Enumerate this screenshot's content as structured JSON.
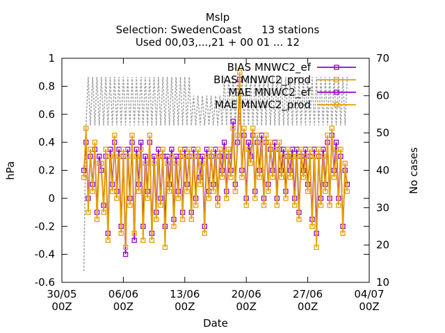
{
  "chart_data": {
    "type": "line",
    "title": "Mslp",
    "subtitle": "Selection: SwedenCoast      13 stations",
    "subtitle2": "Used 00,03,...,21 + 00 01 ... 12",
    "xlabel": "Date",
    "ylabel": "hPa",
    "y2label": "No cases",
    "ylim": [
      -0.6,
      1.0
    ],
    "y2lim": [
      10,
      70
    ],
    "xlim": [
      "30/05 00Z",
      "04/07 00Z"
    ],
    "x_ticks": [
      "30/05",
      "06/06",
      "13/06",
      "20/06",
      "27/06",
      "04/07"
    ],
    "x_ticks_sub": [
      "00Z",
      "00Z",
      "00Z",
      "00Z",
      "00Z",
      "00Z"
    ],
    "y_ticks": [
      "1",
      "0.8",
      "0.6",
      "0.4",
      "0.2",
      "0",
      "-0.2",
      "-0.4",
      "-0.6"
    ],
    "y2_ticks": [
      "70",
      "60",
      "50",
      "40",
      "30",
      "20",
      "10"
    ],
    "legend_position": "top-right",
    "grid": false,
    "colors": {
      "series1": "#9400d3",
      "series2": "#e69f00",
      "series3": "#9400d3",
      "series4": "#e69f00",
      "cases": "#a0a0a0"
    },
    "x_range_days": [
      1.5,
      31.5
    ],
    "series": [
      {
        "name": "BIAS MNWC2_ef",
        "axis": "y",
        "marker": "square",
        "x": [
          1.5,
          1.75,
          2.0,
          2.25,
          2.5,
          2.75,
          3.0,
          3.25,
          3.5,
          3.75,
          4.0,
          4.25,
          4.5,
          4.75,
          5.0,
          5.25,
          5.5,
          5.75,
          6.0,
          6.25,
          6.5,
          6.75,
          7.0,
          7.25,
          7.5,
          7.75,
          8.0,
          8.25,
          8.5,
          8.75,
          9.0,
          9.25,
          9.5,
          9.75,
          10.0,
          10.25,
          10.5,
          10.75,
          11.0,
          11.25,
          11.5,
          11.75,
          12.0,
          12.25,
          12.5,
          12.75,
          13.0,
          13.25,
          13.5,
          13.75,
          14.0,
          14.25,
          14.5,
          14.75,
          15.0,
          15.25,
          15.5,
          15.75,
          16.0,
          16.25,
          16.5,
          16.75,
          17.0,
          17.25,
          17.5,
          17.75,
          18.0,
          18.25,
          18.5,
          18.75,
          19.0,
          19.25,
          19.5,
          19.75,
          20.0,
          20.25,
          20.5,
          20.75,
          21.0,
          21.25,
          21.5,
          21.75,
          22.0,
          22.25,
          22.5,
          22.75,
          23.0,
          23.25,
          23.5,
          23.75,
          24.0,
          24.25,
          24.5,
          24.75,
          25.0,
          25.25,
          25.5,
          25.75,
          26.0,
          26.25,
          26.5,
          26.75,
          27.0,
          27.25,
          27.5,
          27.75,
          28.0,
          28.25,
          28.5,
          28.75,
          29.0,
          29.25,
          29.5,
          29.75,
          30.0,
          30.25,
          30.5,
          30.75,
          31.0,
          31.25,
          31.5
        ],
        "values": [
          0.2,
          0.4,
          0.0,
          0.3,
          0.1,
          0.35,
          -0.1,
          0.3,
          0.2,
          -0.05,
          0.3,
          -0.25,
          0.35,
          0.1,
          0.4,
          0.05,
          0.35,
          -0.2,
          0.3,
          -0.4,
          0.35,
          0.0,
          0.4,
          -0.3,
          0.35,
          0.1,
          0.4,
          -0.2,
          0.3,
          0.05,
          0.4,
          -0.25,
          0.3,
          -0.1,
          0.35,
          0.0,
          0.3,
          -0.2,
          0.3,
          0.1,
          0.35,
          -0.15,
          0.3,
          0.05,
          0.3,
          -0.1,
          0.35,
          0.1,
          0.3,
          -0.1,
          0.35,
          0.0,
          0.3,
          0.15,
          0.3,
          -0.2,
          0.35,
          0.05,
          0.3,
          0.1,
          0.35,
          0.0,
          0.3,
          0.2,
          0.4,
          0.05,
          0.3,
          0.2,
          0.55,
          0.1,
          0.4,
          0.85,
          0.2,
          0.45,
          0.0,
          0.4,
          0.3,
          0.45,
          0.05,
          0.4,
          0.2,
          0.45,
          0.0,
          0.4,
          0.1,
          0.35,
          0.2,
          0.4,
          0.0,
          0.35,
          0.2,
          0.35,
          0.05,
          0.3,
          0.2,
          0.35,
          0.0,
          0.35,
          -0.1,
          0.3,
          0.2,
          0.35,
          0.1,
          0.3,
          -0.15,
          0.35,
          -0.25,
          0.3,
          0.0,
          0.35,
          0.1,
          0.4,
          0.0,
          0.45,
          0.2,
          0.4,
          0.0,
          0.3,
          -0.2,
          0.2,
          0.1
        ]
      },
      {
        "name": "BIAS MNWC2_prod",
        "axis": "y",
        "marker": "square",
        "x": [
          1.5,
          1.75,
          2.0,
          2.25,
          2.5,
          2.75,
          3.0,
          3.25,
          3.5,
          3.75,
          4.0,
          4.25,
          4.5,
          4.75,
          5.0,
          5.25,
          5.5,
          5.75,
          6.0,
          6.25,
          6.5,
          6.75,
          7.0,
          7.25,
          7.5,
          7.75,
          8.0,
          8.25,
          8.5,
          8.75,
          9.0,
          9.25,
          9.5,
          9.75,
          10.0,
          10.25,
          10.5,
          10.75,
          11.0,
          11.25,
          11.5,
          11.75,
          12.0,
          12.25,
          12.5,
          12.75,
          13.0,
          13.25,
          13.5,
          13.75,
          14.0,
          14.25,
          14.5,
          14.75,
          15.0,
          15.25,
          15.5,
          15.75,
          16.0,
          16.25,
          16.5,
          16.75,
          17.0,
          17.25,
          17.5,
          17.75,
          18.0,
          18.25,
          18.5,
          18.75,
          19.0,
          19.25,
          19.5,
          19.75,
          20.0,
          20.25,
          20.5,
          20.75,
          21.0,
          21.25,
          21.5,
          21.75,
          22.0,
          22.25,
          22.5,
          22.75,
          23.0,
          23.25,
          23.5,
          23.75,
          24.0,
          24.25,
          24.5,
          24.75,
          25.0,
          25.25,
          25.5,
          25.75,
          26.0,
          26.25,
          26.5,
          26.75,
          27.0,
          27.25,
          27.5,
          27.75,
          28.0,
          28.25,
          28.5,
          28.75,
          29.0,
          29.25,
          29.5,
          29.75,
          30.0,
          30.25,
          30.5,
          30.75,
          31.0,
          31.25,
          31.5
        ],
        "values": [
          0.15,
          0.5,
          -0.1,
          0.35,
          0.05,
          0.4,
          -0.15,
          0.25,
          0.25,
          -0.1,
          0.35,
          -0.3,
          0.3,
          0.05,
          0.45,
          0.0,
          0.3,
          -0.25,
          0.35,
          -0.35,
          0.3,
          -0.05,
          0.45,
          -0.25,
          0.3,
          0.05,
          0.35,
          -0.3,
          0.25,
          0.0,
          0.45,
          -0.3,
          0.25,
          -0.15,
          0.3,
          -0.05,
          0.35,
          -0.35,
          0.25,
          0.05,
          0.3,
          -0.2,
          0.25,
          0.0,
          0.35,
          -0.15,
          0.3,
          0.05,
          0.35,
          -0.15,
          0.3,
          -0.05,
          0.35,
          0.1,
          0.25,
          -0.25,
          0.3,
          0.0,
          0.35,
          0.05,
          0.3,
          -0.05,
          0.35,
          0.15,
          0.35,
          0.0,
          0.35,
          0.15,
          0.5,
          0.05,
          0.45,
          0.9,
          0.15,
          0.5,
          -0.05,
          0.35,
          0.25,
          0.5,
          0.0,
          0.45,
          0.15,
          0.4,
          -0.05,
          0.45,
          0.05,
          0.4,
          0.15,
          0.35,
          -0.05,
          0.4,
          0.15,
          0.3,
          0.0,
          0.35,
          0.15,
          0.3,
          -0.05,
          0.3,
          -0.15,
          0.35,
          0.15,
          0.3,
          0.05,
          0.35,
          -0.2,
          0.3,
          -0.35,
          0.35,
          -0.05,
          0.3,
          0.05,
          0.45,
          -0.05,
          0.5,
          0.15,
          0.35,
          -0.05,
          0.35,
          -0.25,
          0.25,
          0.05
        ]
      },
      {
        "name": "MAE MNWC2_ef",
        "axis": "y",
        "marker": "square",
        "x": [],
        "values": []
      },
      {
        "name": "MAE MNWC2_prod",
        "axis": "y",
        "marker": "square",
        "x": [],
        "values": []
      },
      {
        "name": "",
        "axis": "y2",
        "marker": "none",
        "dashed": true,
        "x": [
          1.5,
          1.75,
          2.0,
          2.25,
          2.5,
          2.75,
          3.0,
          3.25,
          3.5,
          3.75,
          4.0,
          4.25,
          4.5,
          4.75,
          5.0,
          5.25,
          5.5,
          5.75,
          6.0,
          6.25,
          6.5,
          6.75,
          7.0,
          7.25,
          7.5,
          7.75,
          8.0,
          8.25,
          8.5,
          8.75,
          9.0,
          9.25,
          9.5,
          9.75,
          10.0,
          10.25,
          10.5,
          10.75,
          11.0,
          11.25,
          11.5,
          11.75,
          12.0,
          12.25,
          12.5,
          12.75,
          13.0,
          13.25,
          13.5,
          13.75,
          14.0,
          14.25,
          14.5,
          14.75,
          15.0,
          15.25,
          15.5,
          15.75,
          16.0,
          16.25,
          16.5,
          16.75,
          17.0,
          17.25,
          17.5,
          17.75,
          18.0,
          18.25,
          18.5,
          18.75,
          19.0,
          19.25,
          19.5,
          19.75,
          20.0,
          20.25,
          20.5,
          20.75,
          21.0,
          21.25,
          21.5,
          21.75,
          22.0,
          22.25,
          22.5,
          22.75,
          23.0,
          23.25,
          23.5,
          23.75,
          24.0,
          24.25,
          24.5,
          24.75,
          25.0,
          25.25,
          25.5,
          25.75,
          26.0,
          26.25,
          26.5,
          26.75,
          27.0,
          27.25,
          27.5,
          27.75,
          28.0,
          28.25,
          28.5,
          28.75,
          29.0,
          29.25,
          29.5,
          29.75,
          30.0,
          30.25,
          30.5,
          30.75,
          31.0,
          31.25,
          31.5
        ],
        "values": [
          13,
          52,
          65,
          52,
          65,
          52,
          65,
          52,
          65,
          52,
          65,
          52,
          65,
          52,
          65,
          52,
          65,
          52,
          65,
          52,
          65,
          52,
          65,
          52,
          65,
          52,
          65,
          52,
          65,
          52,
          65,
          52,
          65,
          52,
          65,
          52,
          65,
          52,
          65,
          52,
          65,
          52,
          65,
          52,
          65,
          52,
          65,
          52,
          65,
          52,
          60,
          52,
          60,
          52,
          60,
          52,
          60,
          52,
          60,
          52,
          60,
          52,
          60,
          52,
          65,
          52,
          65,
          52,
          65,
          52,
          65,
          52,
          65,
          52,
          65,
          52,
          65,
          52,
          65,
          52,
          65,
          52,
          65,
          52,
          65,
          52,
          65,
          52,
          65,
          52,
          65,
          52,
          65,
          52,
          65,
          52,
          65,
          52,
          65,
          52,
          65,
          52,
          65,
          52,
          65,
          52,
          65,
          52,
          65,
          52,
          65,
          52,
          65,
          52,
          65,
          52,
          65,
          52,
          65,
          52,
          65
        ]
      }
    ]
  }
}
